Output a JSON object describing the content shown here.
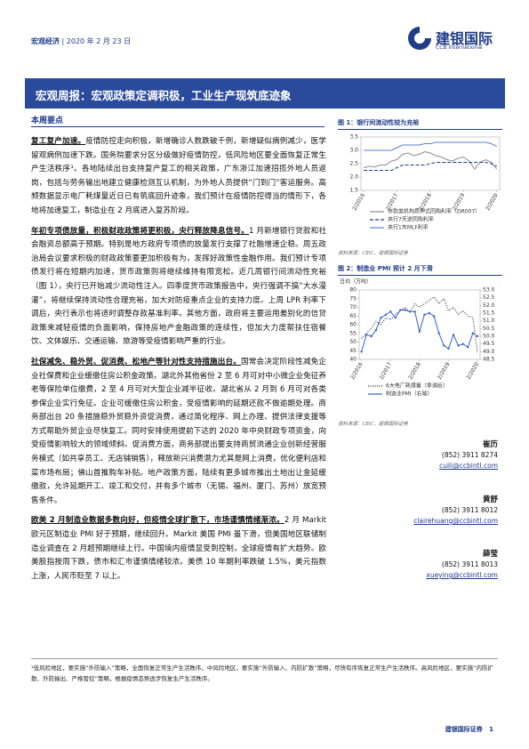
{
  "header": {
    "section": "宏观经济",
    "date": "2020 年 2 月 23 日",
    "logo_cn": "建银国际",
    "logo_en": "CCB International"
  },
  "title": "宏观周报：宏观政策定调积极，工业生产现筑底迹象",
  "section_heading": "本周要点",
  "paragraphs": [
    {
      "lead": "复工复产加速。",
      "text": "疫情防控走向积极，新增确诊人数跌破千例，新增疑似病例减少，医学留观病例加速下跌。国务院要求分区分级做好疫情防控，低风险地区要全面恢复正常生产生活秩序¹。各地陆续出台支持复产复工的相关政策，广东浙江加速招揽外地人员返岗，包括与劳务输出地建立健康检测互认机制，为外地人员提供“门到门”客运服务。高频数据显示电厂耗煤量近日已有筑底回升迹象，我们预计在疫情防控得当的情形下，各地将加速复工，制造业在 2 月底进入复苏阶段。"
    },
    {
      "lead": "年初专项债放量，积极财政政策将更积极，央行释放降息信号。",
      "text": "1 月新增银行贷款和社会融资总额高于预期。特别是地方政府专项债的放量发行支撑了社融增速企稳。周五政治局会议要求积极的财政政策要更加积极有为，发挥好政策性金融作用。我们预计专项债发行将在短期内加速，货币政策则将继续维持有限宽松。近几周银行间流动性充裕（图 1），央行已开始减少流动性注入。四季度货币政策报告中，央行强调不搞“大水漫灌”，将继续保持流动性合理充裕，加大对防疫重点企业的支持力度。上周 LPR 利率下调后，央行表示也将适时调整存款基准利率。其他方面，政府将主要运用差别化的信贷政策来减轻疫情的负面影响，保持房地产金融政策的连续性，但加大力度帮扶住宿餐饮、文体娱乐、交通运输、旅游等受疫情影响严重的行业。"
    },
    {
      "lead": "社保减免、稳外贸、促消费、松地产等针对性支持措施出台。",
      "text": "国常会决定阶段性减免企业社保费和企业缓缴住房公积金政策。湖北外其他省份 2 至 6 月可对中小微企业免征养老等保险单位缴费，2 至 4 月可对大型企业减半征收。湖北省从 2 月到 6 月可对各类参保企业实行免征。企业可缓缴住房公积金，受疫情影响的延期还款不做逾期处理。商务部出台 20 条措施稳外贸稳外资促消费，通过简化程序、网上办理、提供法律支援等方式帮助外贸企业尽快复工。同时安排使用提前下达的 2020 年中央财政专项资金，向受疫情影响较大的领域倾斜。促消费方面，商务部提出要支持商贸流通企业创新经营服务模式（如共享员工、无店铺销售），释放新兴消费潜力尤其是网上消费，优化便利店和菜市场布局；佛山首推购车补贴。地产政策方面，陆续有更多城市推出土地出让金延缓缴款，允许延期开工、竣工和交付，并有多个城市（无锡、福州、厦门、苏州）放宽预售条件。"
    },
    {
      "lead": "欧美 2 月制造业数据多数向好，但疫情全球扩散下，市场谨慎情绪渐浓。",
      "text": "2 月 Markit 欧元区制造业 PMI 好于预期，继续回升。Markit 美国 PMI 虽下滑，但美国地区联储制造业调查在 2 月超预期继续上行。中国境内疫情显受到控制，全球疫情有扩大趋势。欧美股指按周下跌，债市和汇市谨慎情绪较浓。美债 10 年期利率跌破 1.5%，美元指数上涨，人民币贬至 7 以上。"
    }
  ],
  "contacts": [
    {
      "name": "崔历",
      "phone": "(852) 3911 8274",
      "email": "cuili@ccbintl.com"
    },
    {
      "name": "黄舒",
      "phone": "(852) 3911 8012",
      "email": "clairehuang@ccbintl.com"
    },
    {
      "name": "薛莹",
      "phone": "(852) 3911 8013",
      "email": "xueying@ccbintl.com"
    }
  ],
  "footnote": "¹低风险地区，要实施“外防输入”策略，全面恢复正常生产生活秩序。中风险地区，要实施“外防输入、内防扩散”策略，尽快有序恢复正常生产生活秩序。高风险地区，要实施“内防扩散、外防输出、严格管控”策略，根据疫情态势逐步恢复生产生活秩序。",
  "footer": {
    "company": "建银国际证券",
    "page": "1"
  },
  "chart_data": [
    {
      "type": "line",
      "title": "图 1：银行间流动性较为充裕",
      "source": "资料来源：CEIC，建银国际证券",
      "x": [
        2016.08,
        2016.25,
        2016.42,
        2016.58,
        2016.75,
        2016.92,
        2017.08,
        2017.25,
        2017.42,
        2017.58,
        2017.75,
        2017.92,
        2018.08,
        2018.25,
        2018.42,
        2018.58,
        2018.75,
        2018.92,
        2019.08,
        2019.25,
        2019.42,
        2019.58,
        2019.75,
        2019.92,
        2020.08
      ],
      "xlim": [
        2016.0,
        2020.17
      ],
      "xticks": [
        {
          "value": 2016.08,
          "label": "2/2016"
        },
        {
          "value": 2017.08,
          "label": "2/2017"
        },
        {
          "value": 2018.08,
          "label": "2/2018"
        },
        {
          "value": 2019.08,
          "label": "2/2019"
        },
        {
          "value": 2020.08,
          "label": "2/2020"
        }
      ],
      "ylim": [
        1.5,
        3.5
      ],
      "yticks": [
        1.5,
        {
          "value": 2.0,
          "label": "2.0"
        },
        2.5,
        {
          "value": 3.0,
          "label": "3.0"
        },
        3.5
      ],
      "legend": "bottom",
      "series": [
        {
          "name": "存款类机构质押式回购利率（DR007）",
          "color": "#8c8c8c",
          "style": "solid",
          "values": [
            2.35,
            2.4,
            2.38,
            2.45,
            2.45,
            2.6,
            2.65,
            2.85,
            2.9,
            2.8,
            2.85,
            2.95,
            2.9,
            2.8,
            2.75,
            2.65,
            2.6,
            2.7,
            2.75,
            2.6,
            2.3,
            2.55,
            2.65,
            2.55,
            2.3
          ]
        },
        {
          "name": "央行7天逆回购利率",
          "color": "#1f3c88",
          "style": "dashed",
          "values": [
            2.25,
            2.25,
            2.25,
            2.25,
            2.25,
            2.25,
            2.35,
            2.45,
            2.45,
            2.45,
            2.45,
            2.45,
            2.5,
            2.55,
            2.55,
            2.55,
            2.55,
            2.55,
            2.55,
            2.55,
            2.55,
            2.55,
            2.55,
            2.5,
            2.4
          ]
        },
        {
          "name": "央行1年MLF利率",
          "color": "#5b7fd6",
          "style": "solid",
          "values": [
            3.0,
            3.0,
            3.0,
            3.0,
            3.0,
            3.0,
            3.1,
            3.2,
            3.2,
            3.2,
            3.2,
            3.25,
            3.25,
            3.3,
            3.3,
            3.3,
            3.3,
            3.3,
            3.3,
            3.3,
            3.3,
            3.3,
            3.3,
            3.25,
            3.15
          ]
        }
      ]
    },
    {
      "type": "line",
      "title": "图 2：制造业 PMI 预计 2 月下滑",
      "source": "资料来源：CEIC，建银国际证券",
      "ylabel": "日均（万吨）",
      "x": [
        2016.08,
        2016.25,
        2016.42,
        2016.58,
        2016.75,
        2016.92,
        2017.08,
        2017.25,
        2017.42,
        2017.58,
        2017.75,
        2017.92,
        2018.08,
        2018.25,
        2018.42,
        2018.58,
        2018.75,
        2018.92,
        2019.08,
        2019.25,
        2019.42,
        2019.58,
        2019.75,
        2019.92,
        2020.08
      ],
      "xlim": [
        2016.0,
        2020.17
      ],
      "xticks": [
        {
          "value": 2016.08,
          "label": "2/2016"
        },
        {
          "value": 2017.08,
          "label": "2/2017"
        },
        {
          "value": 2018.08,
          "label": "2/2018"
        },
        {
          "value": 2019.08,
          "label": "2/2019"
        },
        {
          "value": 2020.08,
          "label": "2/2020"
        }
      ],
      "ylim": [
        40,
        80
      ],
      "yticks": [
        40,
        45,
        50,
        55,
        60,
        65,
        70,
        75,
        80
      ],
      "y2lim": [
        48.5,
        53.0
      ],
      "y2ticks": [
        48.5,
        {
          "value": 49.0,
          "label": "49.0"
        },
        49.5,
        {
          "value": 50.0,
          "label": "50.0"
        },
        50.5,
        {
          "value": 51.0,
          "label": "51.0"
        },
        51.5,
        {
          "value": 52.0,
          "label": "52.0"
        },
        52.5,
        {
          "value": 53.0,
          "label": "53.0"
        }
      ],
      "legend": "bottom",
      "series": [
        {
          "name": "6大电厂耗煤量（季调后）",
          "color": "#222222",
          "style": "dotted",
          "values": [
            52,
            55,
            58,
            62,
            60,
            64,
            63,
            66,
            68,
            70,
            67,
            72,
            70,
            72,
            74,
            76,
            72,
            75,
            68,
            70,
            66,
            68,
            65,
            64,
            44
          ]
        },
        {
          "name": "制造业PMI（右轴）",
          "color": "#3a5fcd",
          "style": "solid",
          "marker": true,
          "axis": "y2",
          "values": [
            49.0,
            50.1,
            50.0,
            50.4,
            51.2,
            51.4,
            51.6,
            51.2,
            51.7,
            51.7,
            51.6,
            51.6,
            50.3,
            51.4,
            51.5,
            51.3,
            50.2,
            49.4,
            49.2,
            50.1,
            49.4,
            49.5,
            49.3,
            50.2,
            50.0
          ]
        }
      ]
    }
  ]
}
